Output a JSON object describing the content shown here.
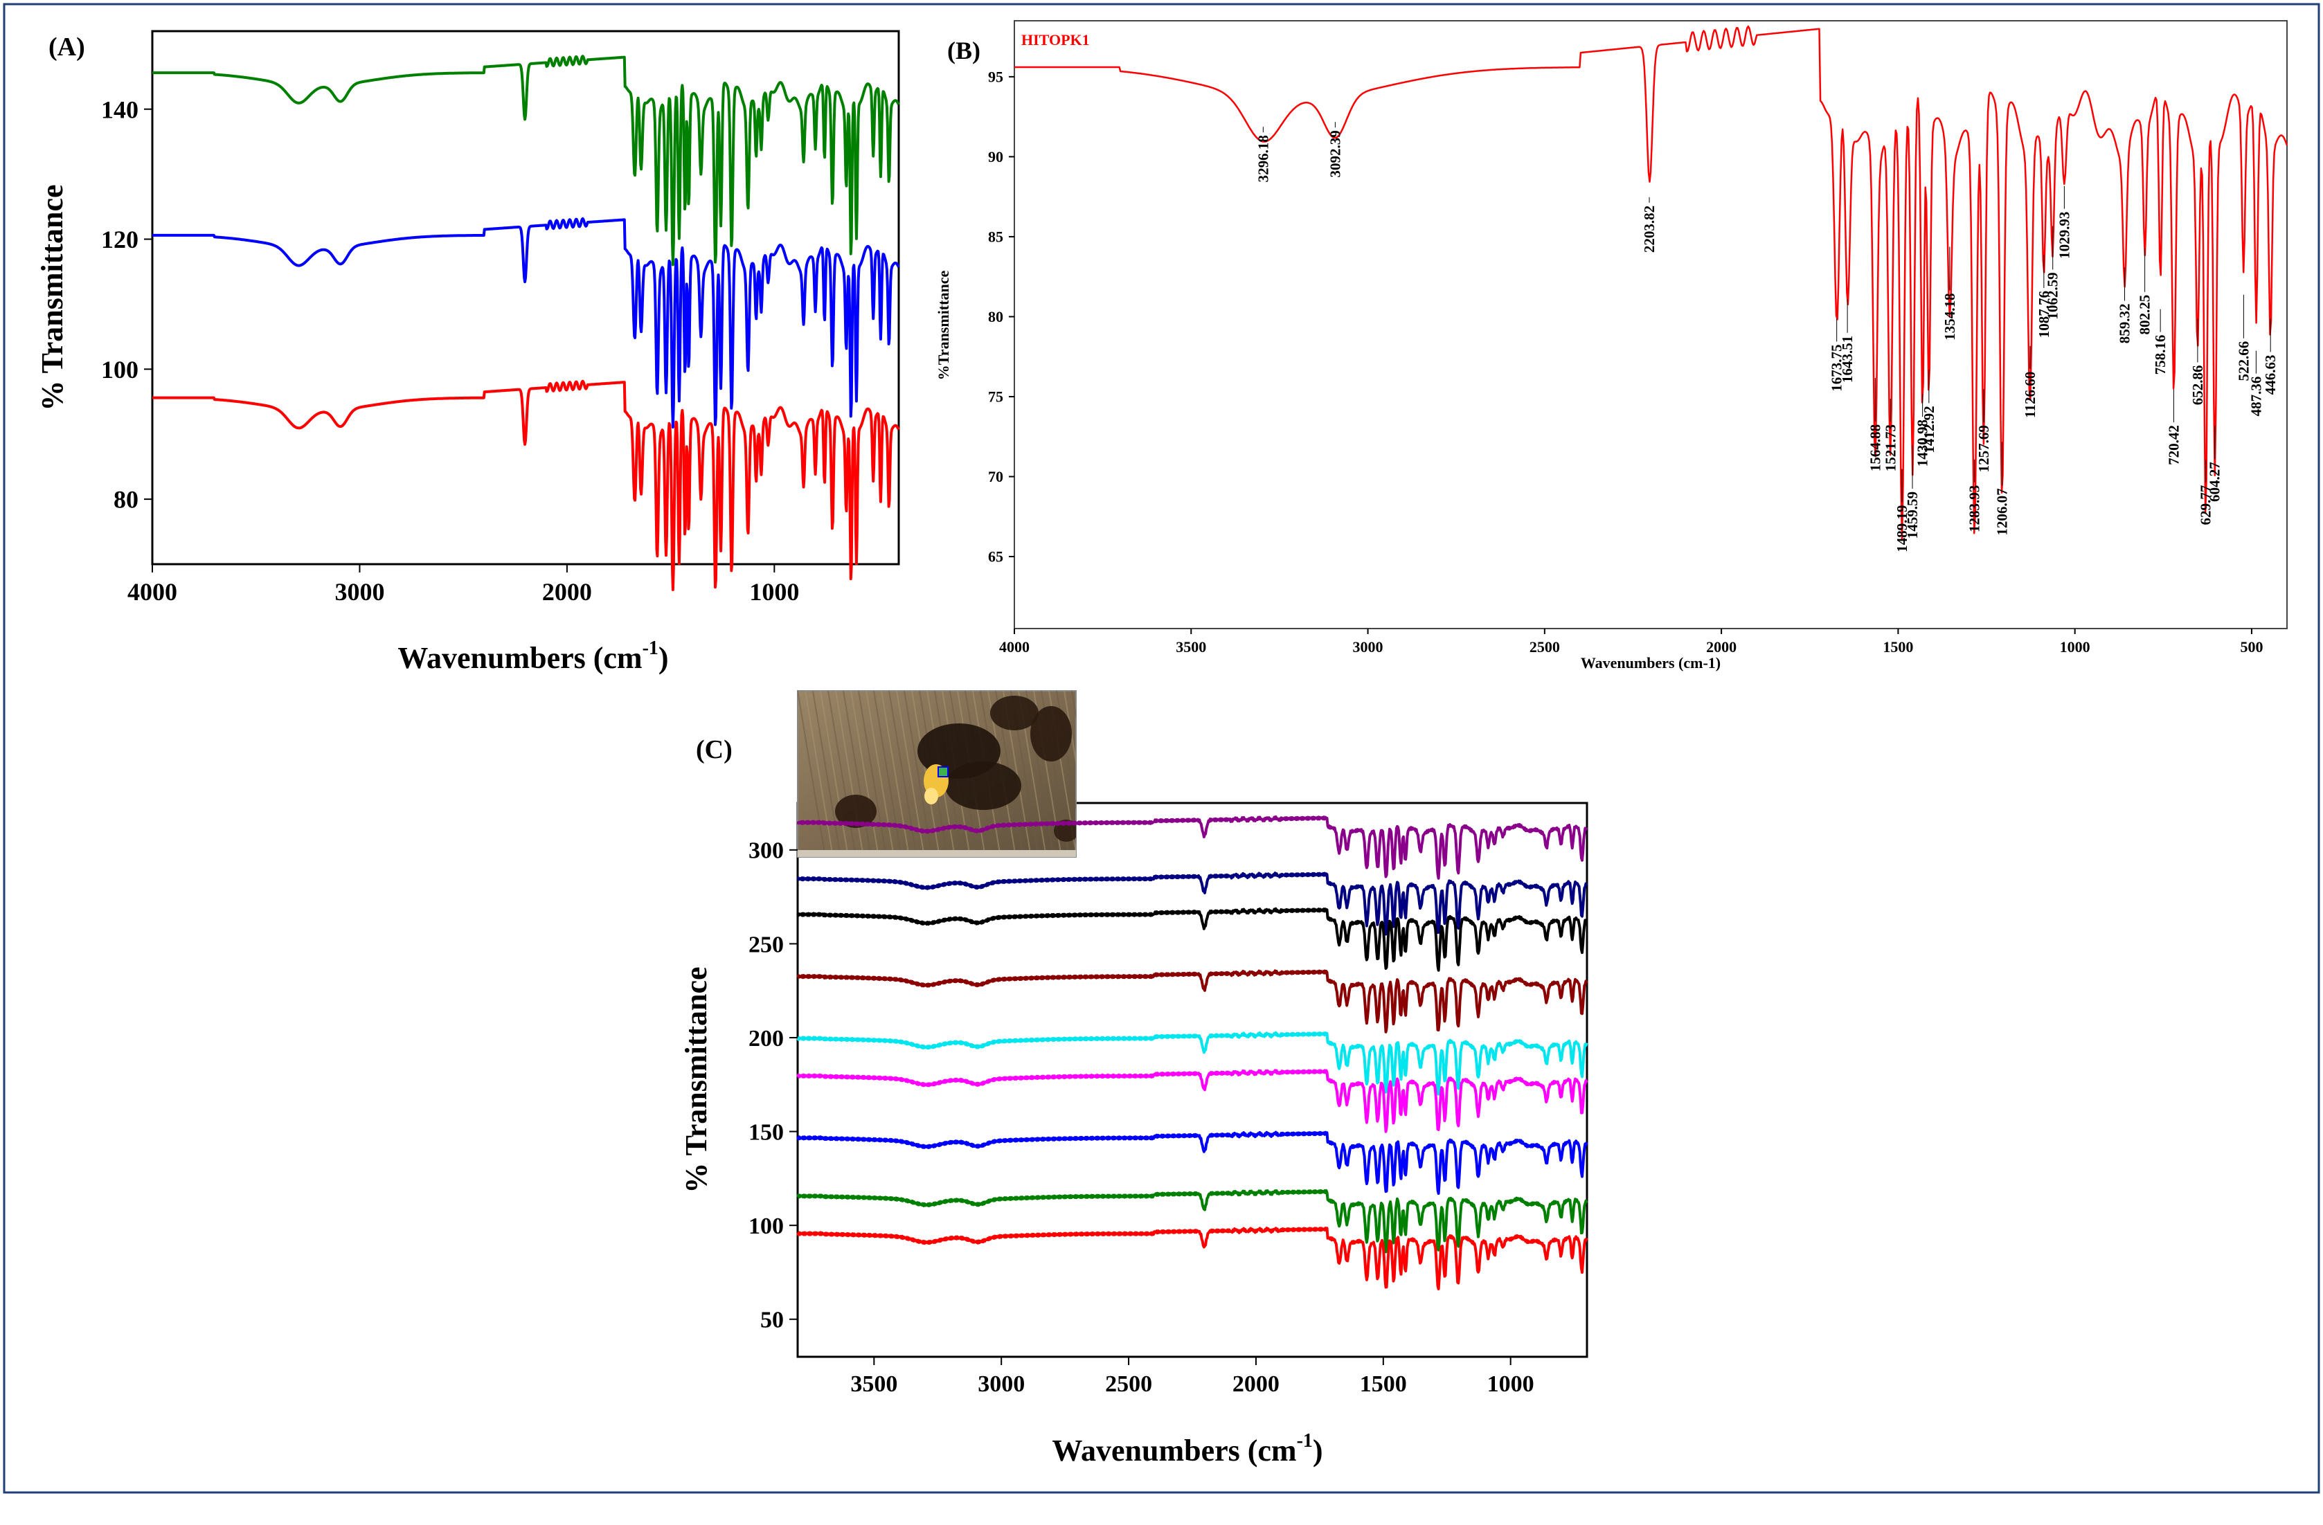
{
  "panels": {
    "a": {
      "label": "(A)"
    },
    "b": {
      "label": "(B)"
    },
    "c": {
      "label": "(C)"
    }
  },
  "colors": {
    "red": "#ff0000",
    "blue": "#0000ff",
    "green": "#008000",
    "purple": "#8b008b",
    "navy": "#000080",
    "black": "#000000",
    "maroon": "#8b0000",
    "cyan": "#00ffff",
    "magenta": "#ff00ff",
    "frame": "#1f3f77"
  },
  "chart_data": [
    {
      "id": "A",
      "type": "line",
      "title": "",
      "xlabel": "Wavenumbers (cm",
      "xlabel_sup": "-1",
      "xlabel_close": ")",
      "ylabel": "% Transmittance",
      "xlim": [
        4000,
        400
      ],
      "ylim": [
        70,
        152
      ],
      "xticks": [
        4000,
        3000,
        2000,
        1000
      ],
      "yticks": [
        80,
        100,
        120,
        140
      ],
      "series": [
        {
          "name": "green",
          "color": "#008000",
          "offset": 50
        },
        {
          "name": "blue",
          "color": "#0000ff",
          "offset": 25
        },
        {
          "name": "red",
          "color": "#ff0000",
          "offset": 0
        }
      ]
    },
    {
      "id": "B",
      "type": "line",
      "series_label": "HITOPK1",
      "xlabel": "Wavenumbers (cm-1)",
      "ylabel": "%Transmittance",
      "xlim": [
        4000,
        400
      ],
      "ylim": [
        60.5,
        98.5
      ],
      "xticks": [
        4000,
        3500,
        3000,
        2500,
        2000,
        1500,
        1000,
        500
      ],
      "yticks": [
        65,
        70,
        75,
        80,
        85,
        90,
        95
      ],
      "series": [
        {
          "name": "HITOPK1",
          "color": "#ff0000",
          "offset": 0
        }
      ],
      "peak_labels": [
        {
          "x": 3296.18,
          "y": 92.0,
          "label": "3296.18"
        },
        {
          "x": 3092.39,
          "y": 92.3,
          "label": "3092.39"
        },
        {
          "x": 2203.82,
          "y": 87.6,
          "label": "2203.82"
        },
        {
          "x": 1673.75,
          "y": 80.0,
          "label": "1673.75"
        },
        {
          "x": 1643.51,
          "y": 81.2,
          "label": "1643.51"
        },
        {
          "x": 1564.88,
          "y": 76.3,
          "label": "1564.88"
        },
        {
          "x": 1521.73,
          "y": 75.0,
          "label": "1521.73"
        },
        {
          "x": 1489.19,
          "y": 70.6,
          "label": "1489.19"
        },
        {
          "x": 1459.59,
          "y": 72.1,
          "label": "1459.59"
        },
        {
          "x": 1430.98,
          "y": 75.3,
          "label": "1430.98"
        },
        {
          "x": 1412.92,
          "y": 76.8,
          "label": "1412.92"
        },
        {
          "x": 1354.18,
          "y": 84.5,
          "label": "1354.18"
        },
        {
          "x": 1283.93,
          "y": 71.2,
          "label": "1283.93"
        },
        {
          "x": 1257.69,
          "y": 75.6,
          "label": "1257.69"
        },
        {
          "x": 1206.07,
          "y": 72.3,
          "label": "1206.07"
        },
        {
          "x": 1126.6,
          "y": 78.3,
          "label": "1126.60"
        },
        {
          "x": 1087.76,
          "y": 84.0,
          "label": "1087.76"
        },
        {
          "x": 1062.59,
          "y": 85.8,
          "label": "1062.59"
        },
        {
          "x": 1029.93,
          "y": 88.3,
          "label": "1029.93"
        },
        {
          "x": 859.32,
          "y": 83.2,
          "label": "859.32"
        },
        {
          "x": 802.25,
          "y": 84.4,
          "label": "802.25"
        },
        {
          "x": 758.16,
          "y": 80.6,
          "label": "758.16"
        },
        {
          "x": 720.42,
          "y": 75.6,
          "label": "720.42"
        },
        {
          "x": 652.86,
          "y": 80.0,
          "label": "652.86"
        },
        {
          "x": 629.77,
          "y": 71.2,
          "label": "629.77"
        },
        {
          "x": 604.27,
          "y": 73.3,
          "label": "604.27"
        },
        {
          "x": 522.66,
          "y": 81.5,
          "label": "522.66"
        },
        {
          "x": 487.36,
          "y": 78.0,
          "label": "487.36"
        },
        {
          "x": 446.63,
          "y": 80.0,
          "label": "446.63"
        }
      ]
    },
    {
      "id": "C",
      "type": "line",
      "xlabel": "Wavenumbers (cm",
      "xlabel_sup": "-1",
      "xlabel_close": ")",
      "ylabel": "% Transmittance",
      "xlim": [
        3800,
        700
      ],
      "ylim": [
        30,
        325
      ],
      "xticks": [
        3500,
        3000,
        2500,
        2000,
        1500,
        1000
      ],
      "yticks": [
        50,
        100,
        150,
        200,
        250,
        300
      ],
      "series": [
        {
          "name": "purple",
          "color": "#8b008b",
          "offset": 219
        },
        {
          "name": "navy",
          "color": "#000080",
          "offset": 189
        },
        {
          "name": "black",
          "color": "#000000",
          "offset": 170
        },
        {
          "name": "maroon",
          "color": "#8b0000",
          "offset": 137
        },
        {
          "name": "cyan",
          "color": "#00e5ee",
          "offset": 104
        },
        {
          "name": "magenta",
          "color": "#ff00ff",
          "offset": 84
        },
        {
          "name": "blue",
          "color": "#0000ff",
          "offset": 51
        },
        {
          "name": "green",
          "color": "#008000",
          "offset": 20
        },
        {
          "name": "red",
          "color": "#ff0000",
          "offset": 0
        }
      ]
    }
  ]
}
